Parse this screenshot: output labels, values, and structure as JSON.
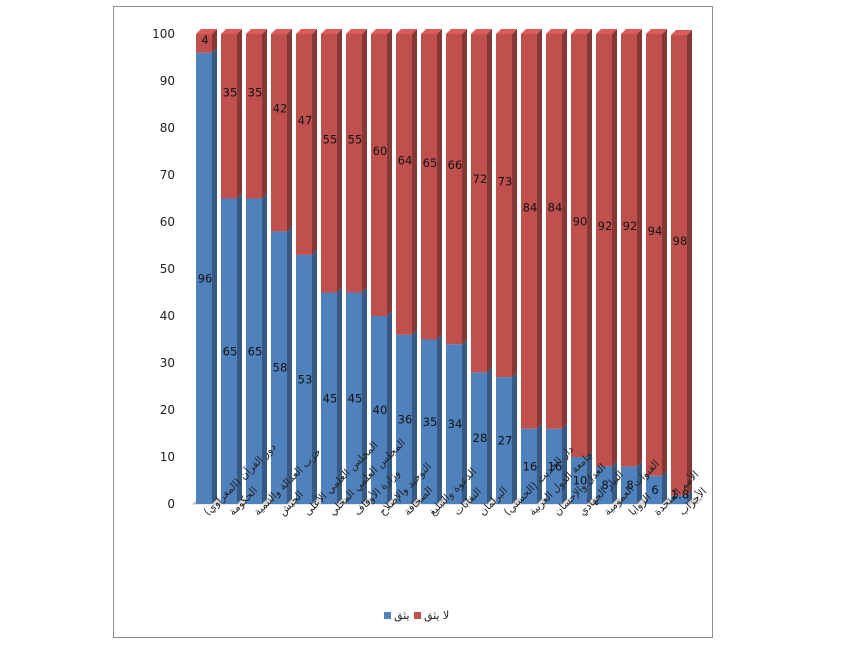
{
  "chart_data": {
    "type": "bar",
    "stacked": true,
    "title": "",
    "xlabel": "",
    "ylabel": "",
    "ylim": [
      0,
      100
    ],
    "yticks": [
      0,
      10,
      20,
      30,
      40,
      50,
      60,
      70,
      80,
      90,
      100
    ],
    "grid": false,
    "legend_position": "bottom",
    "categories": [
      "دور القرآن (المغراوي)",
      "الحكومة",
      "حزب العدالة والتنمية",
      "الجيش",
      "المجلس العلمي الأعلى",
      "المجلس العلمي المحلي",
      "وزارة الأوقاف",
      "التوحيد والإصلاح",
      "الصحافة",
      "الدعوة والتبليغ",
      "النقابات",
      "البرلمان",
      "دار الحديث (الحسني)",
      "جامعة الدول العربية",
      "العدل والإحسان",
      "التيار الجهادي",
      "القنوات العمومية",
      "الزوايا",
      "الأمم المتحدة",
      "الأحزاب"
    ],
    "series": [
      {
        "name": "يثق",
        "color": "#4f81bd",
        "values": [
          96,
          65,
          65,
          58,
          53,
          45,
          45,
          40,
          36,
          35,
          34,
          28,
          27,
          16,
          16,
          10,
          8,
          8,
          6,
          1.8
        ],
        "labels": [
          "96",
          "65",
          "65",
          "58",
          "53",
          "45",
          "45",
          "40",
          "36",
          "35",
          "34",
          "28",
          "27",
          "16",
          "16",
          "10",
          "8",
          "8",
          "6",
          "1.8"
        ]
      },
      {
        "name": "لا يثق",
        "color": "#c0504d",
        "values": [
          4,
          35,
          35,
          42,
          47,
          55,
          55,
          60,
          64,
          65,
          66,
          72,
          73,
          84,
          84,
          90,
          92,
          92,
          94,
          98
        ],
        "labels": [
          "4",
          "35",
          "35",
          "42",
          "47",
          "55",
          "55",
          "60",
          "64",
          "65",
          "66",
          "72",
          "73",
          "84",
          "84",
          "90",
          "92",
          "92",
          "94",
          "98"
        ]
      }
    ]
  }
}
